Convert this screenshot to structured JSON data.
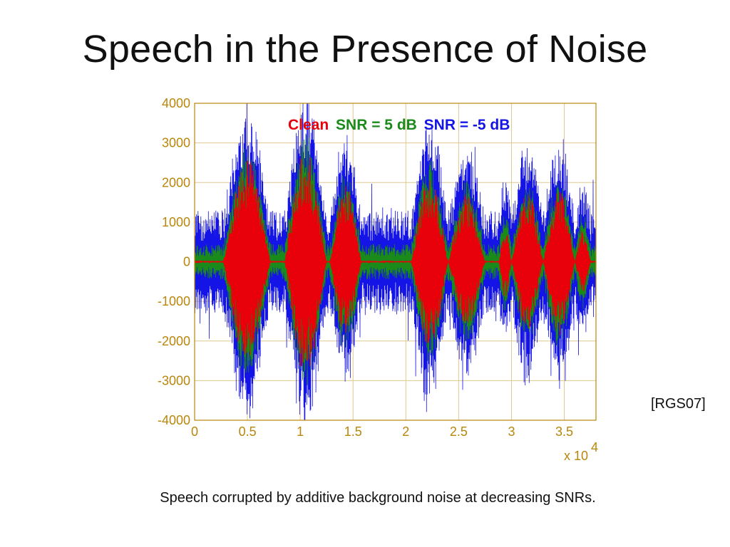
{
  "slide": {
    "title": "Speech in the Presence of Noise",
    "citation": "[RGS07]",
    "caption": "Speech corrupted by additive background noise at decreasing SNRs."
  },
  "chart_data": {
    "type": "line",
    "title": "",
    "xlabel": "",
    "ylabel": "",
    "x_multiplier_label": "x 10",
    "x_multiplier_exponent": "4",
    "xlim": [
      0,
      3.8
    ],
    "ylim": [
      -4000,
      4000
    ],
    "x_ticks": [
      "0",
      "0.5",
      "1",
      "1.5",
      "2",
      "2.5",
      "3",
      "3.5"
    ],
    "y_ticks": [
      "4000",
      "3000",
      "2000",
      "1000",
      "0",
      "-1000",
      "-2000",
      "-3000",
      "-4000"
    ],
    "grid": true,
    "legend": [
      {
        "label": "Clean",
        "color": "#e8000b"
      },
      {
        "label": "SNR = 5 dB",
        "color": "#1a8a1a"
      },
      {
        "label": "SNR = -5 dB",
        "color": "#1414e6"
      }
    ],
    "series": [
      {
        "name": "SNR = -5 dB",
        "color": "#1414e6",
        "noise_amplitude": 1300,
        "peak_amplitude": 3800
      },
      {
        "name": "SNR = 5 dB",
        "color": "#1a8a1a",
        "noise_amplitude": 450,
        "peak_amplitude": 2900
      },
      {
        "name": "Clean",
        "color": "#e8000b",
        "speech_bursts": [
          {
            "start": 0.27,
            "end": 0.72,
            "peak": 2600
          },
          {
            "start": 0.85,
            "end": 1.25,
            "peak": 2900
          },
          {
            "start": 1.28,
            "end": 1.58,
            "peak": 1900
          },
          {
            "start": 2.05,
            "end": 2.4,
            "peak": 2200
          },
          {
            "start": 2.4,
            "end": 2.75,
            "peak": 1700
          },
          {
            "start": 2.88,
            "end": 3.0,
            "peak": 900
          },
          {
            "start": 3.0,
            "end": 3.3,
            "peak": 1800
          },
          {
            "start": 3.3,
            "end": 3.6,
            "peak": 1900
          },
          {
            "start": 3.6,
            "end": 3.75,
            "peak": 800
          }
        ]
      }
    ]
  }
}
